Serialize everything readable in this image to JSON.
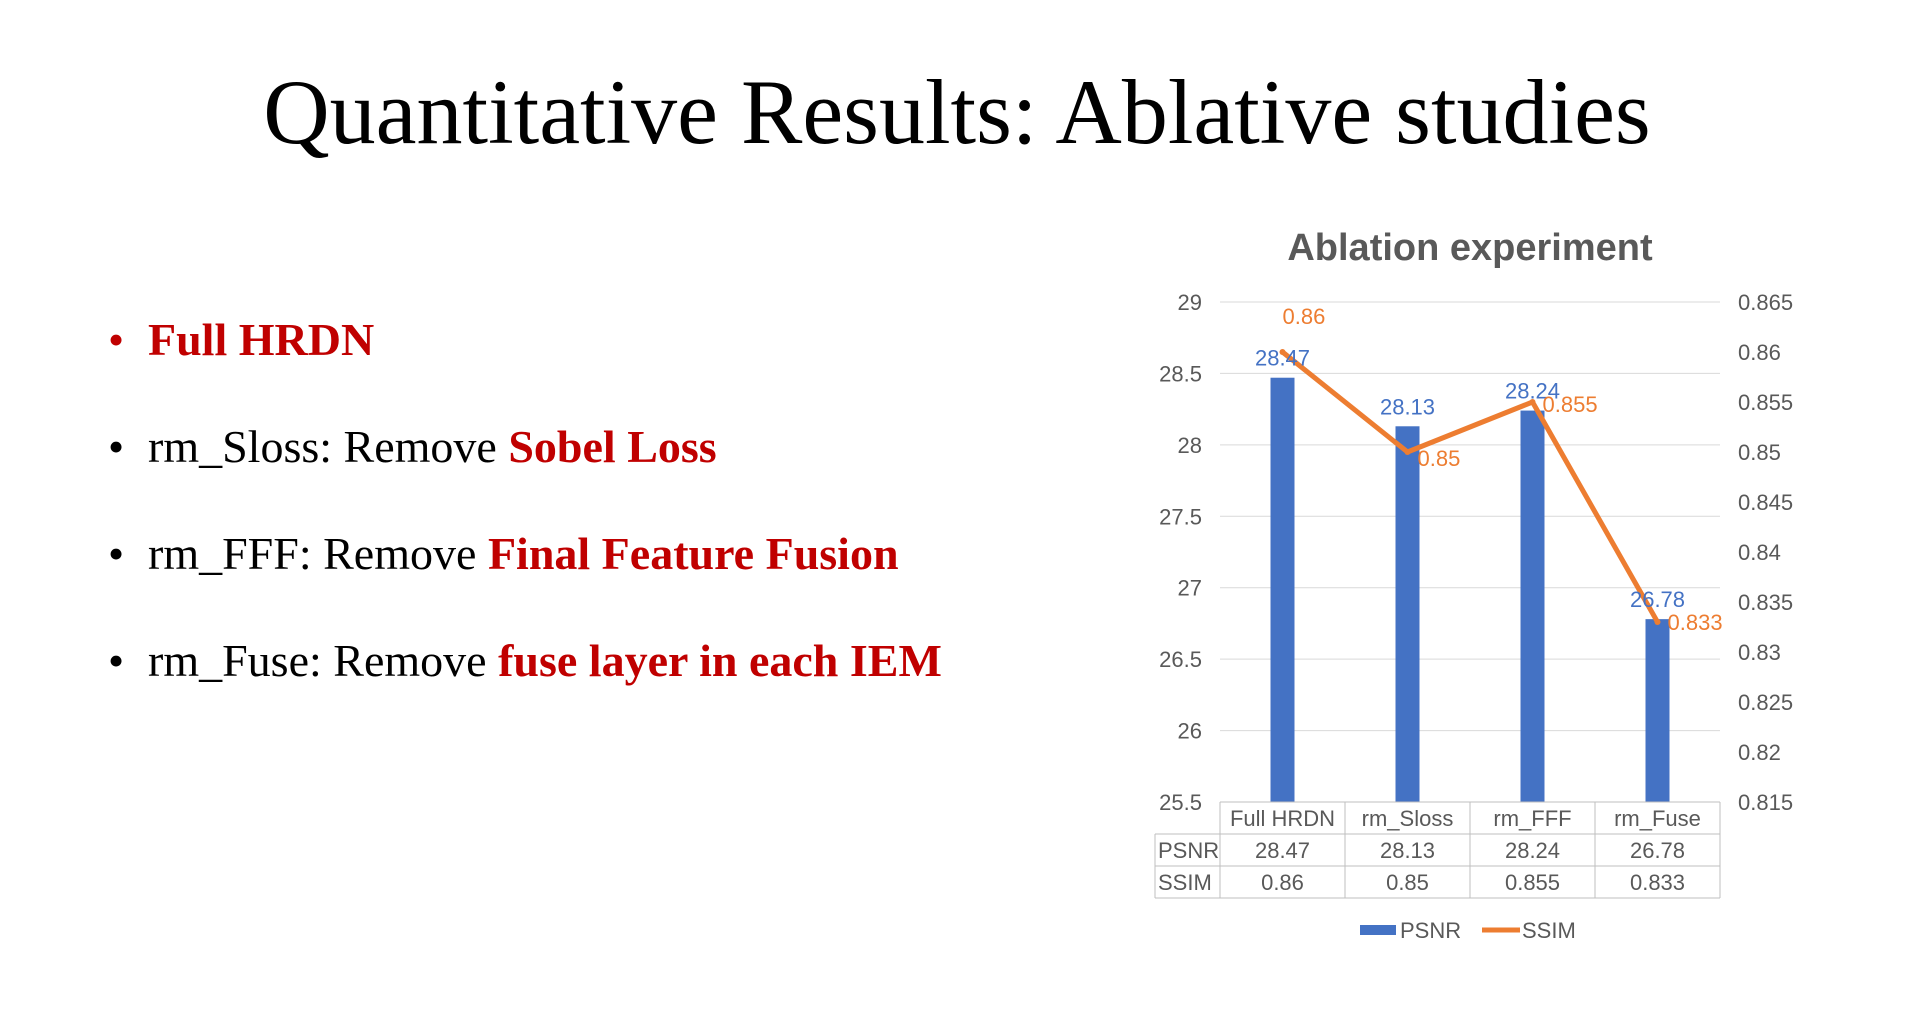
{
  "title": "Quantitative Results: Ablative studies",
  "bullets": [
    {
      "plain": "",
      "emphasis": "Full HRDN",
      "all_red": true
    },
    {
      "plain": "rm_Sloss: Remove ",
      "emphasis": "Sobel Loss",
      "all_red": false
    },
    {
      "plain": "rm_FFF: Remove ",
      "emphasis": "Final Feature Fusion",
      "all_red": false
    },
    {
      "plain": "rm_Fuse: Remove ",
      "emphasis": "fuse layer in each IEM",
      "all_red": false
    }
  ],
  "colors": {
    "emphasis": "#c00000",
    "psnr": "#4472c4",
    "ssim": "#ed7d31",
    "axis_text": "#595959",
    "gridline": "#d9d9d9"
  },
  "chart_data": {
    "type": "bar",
    "title": "Ablation experiment",
    "categories": [
      "Full HRDN",
      "rm_Sloss",
      "rm_FFF",
      "rm_Fuse"
    ],
    "series": [
      {
        "name": "PSNR",
        "type": "bar",
        "axis": "left",
        "values": [
          28.47,
          28.13,
          28.24,
          26.78
        ],
        "labels": [
          "28.47",
          "28.13",
          "28.24",
          "26.78"
        ]
      },
      {
        "name": "SSIM",
        "type": "line",
        "axis": "right",
        "values": [
          0.86,
          0.85,
          0.855,
          0.833
        ],
        "labels": [
          "0.86",
          "0.85",
          "0.855",
          "0.833"
        ]
      }
    ],
    "y_left": {
      "min": 25.5,
      "max": 29,
      "step": 0.5,
      "tick_labels": [
        "25.5",
        "26",
        "26.5",
        "27",
        "27.5",
        "28",
        "28.5",
        "29"
      ]
    },
    "y_right": {
      "min": 0.815,
      "max": 0.865,
      "step": 0.005,
      "tick_labels": [
        "0.815",
        "0.82",
        "0.825",
        "0.83",
        "0.835",
        "0.84",
        "0.845",
        "0.85",
        "0.855",
        "0.86",
        "0.865"
      ]
    },
    "data_table": {
      "rows": [
        {
          "label": "PSNR",
          "cells": [
            "28.47",
            "28.13",
            "28.24",
            "26.78"
          ]
        },
        {
          "label": "SSIM",
          "cells": [
            "0.86",
            "0.85",
            "0.855",
            "0.833"
          ]
        }
      ]
    },
    "grid": true,
    "legend": "bottom"
  }
}
